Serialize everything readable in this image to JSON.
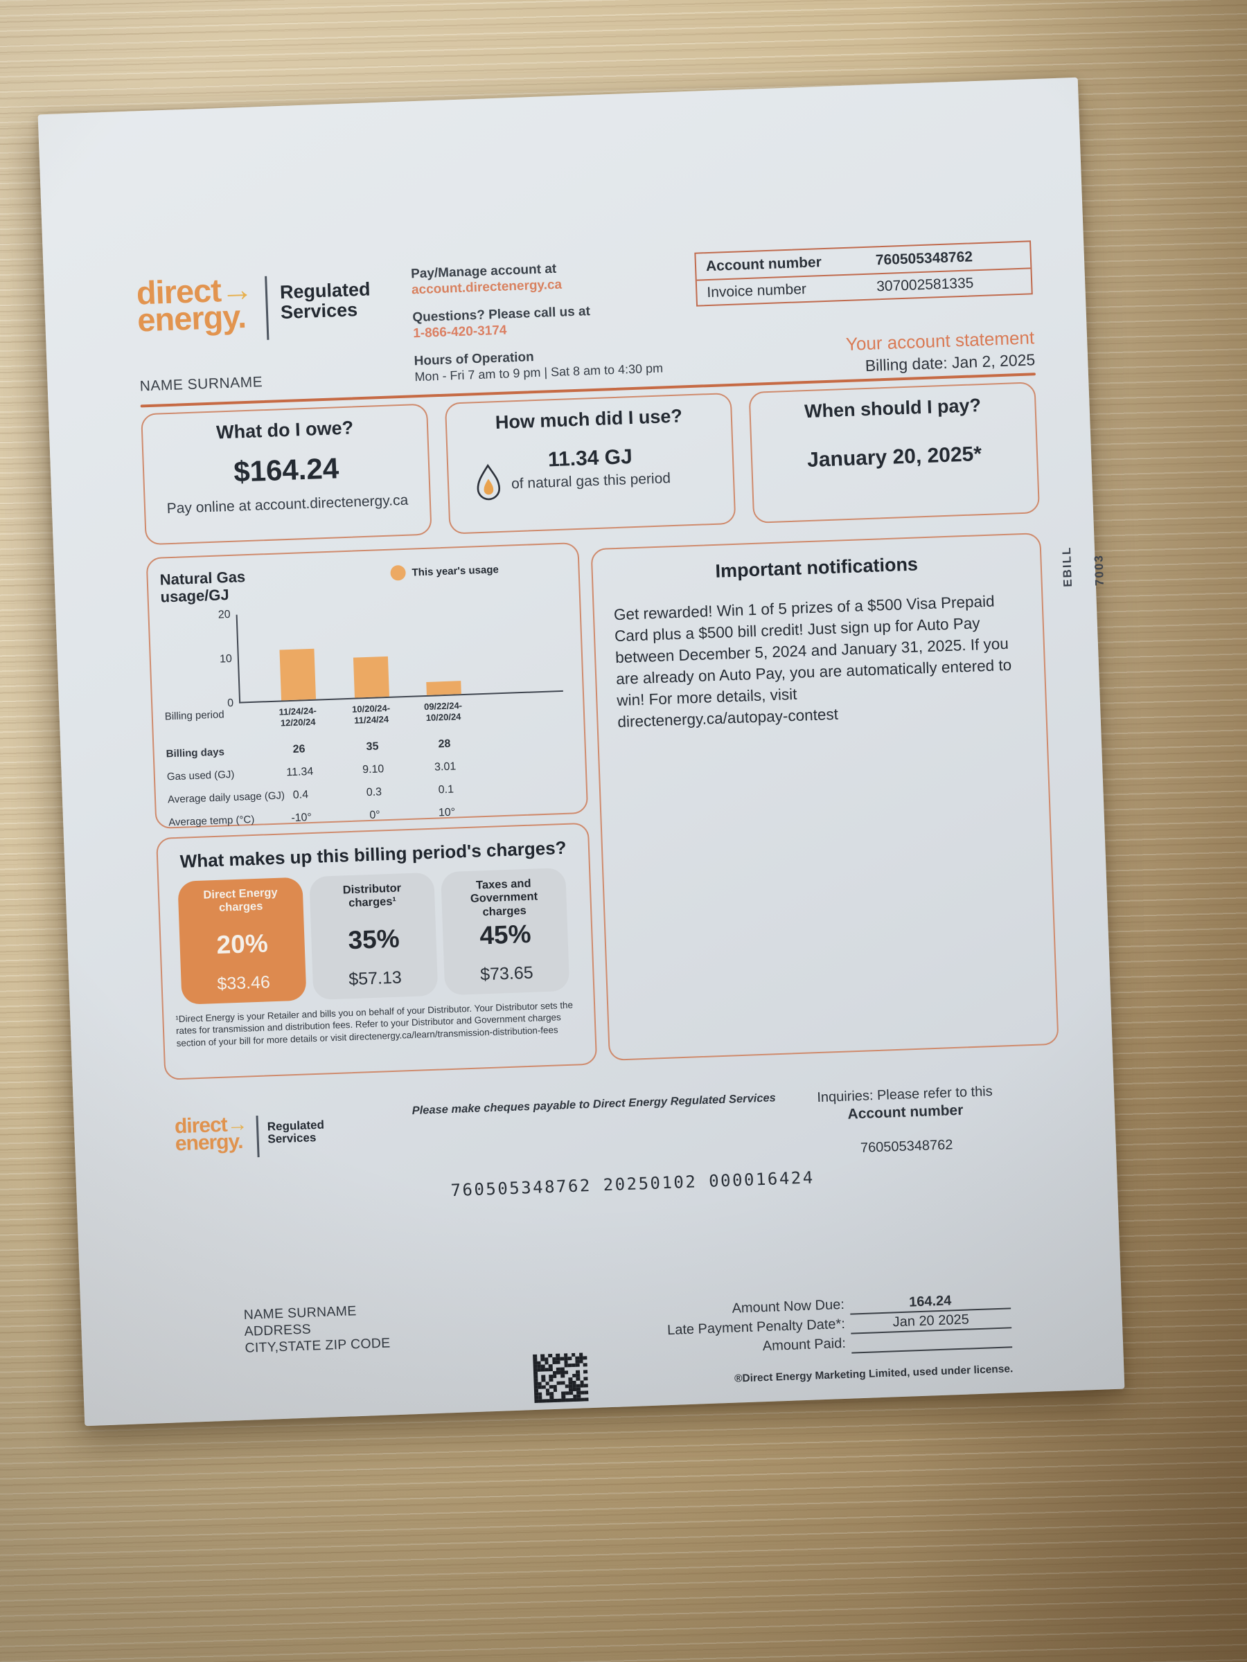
{
  "colors": {
    "accent": "#cf7a52",
    "logo_orange": "#e2944f",
    "arrow_gold": "#e7b04e",
    "rule_orange": "#c66a44",
    "bar_orange": "#eca963",
    "charge_card_orange": "#dd8a4f",
    "charge_card_gray": "#d1d5d9",
    "paper": "#dfe4e8",
    "wood": "#c6ad83",
    "ink": "#2b3139"
  },
  "header": {
    "logo_line1": "direct",
    "logo_arrow": "→",
    "logo_line2": "energy.",
    "tagline": "Regulated\nServices",
    "pay_manage_label": "Pay/Manage account at",
    "pay_manage_link": "account.directenergy.ca",
    "questions_label": "Questions? Please call us at",
    "phone": "1-866-420-3174",
    "hours_label": "Hours of Operation",
    "hours_value": "Mon - Fri 7 am to 9 pm | Sat 8 am to 4:30 pm",
    "account_number_label": "Account number",
    "account_number": "760505348762",
    "invoice_number_label": "Invoice number",
    "invoice_number": "307002581335",
    "customer_name": "NAME SURNAME",
    "statement_title": "Your account statement",
    "billing_date": "Billing date: Jan 2, 2025"
  },
  "side_label": {
    "code": "7003",
    "ebill": "EBILL"
  },
  "summary_cards": {
    "owe": {
      "title": "What do I owe?",
      "amount": "$164.24",
      "note": "Pay online at account.directenergy.ca"
    },
    "usage": {
      "title": "How much did I use?",
      "value": "11.34 GJ",
      "note": "of natural gas this period"
    },
    "pay_by": {
      "title": "When should I pay?",
      "date": "January 20, 2025*"
    }
  },
  "chart_data": {
    "type": "bar",
    "title": "Natural Gas\nusage/GJ",
    "legend": "This year's usage",
    "categories": [
      "11/24/24-12/20/24",
      "10/20/24-11/24/24",
      "09/22/24-10/20/24"
    ],
    "values": [
      11.34,
      9.1,
      3.01
    ],
    "ylim": [
      0,
      20
    ],
    "yticks": [
      20,
      10,
      0
    ],
    "xlabel": "Billing period",
    "ylabel": "GJ",
    "legend_position": "top-right",
    "grid": false
  },
  "usage_table": {
    "rows": [
      {
        "label": "Billing period",
        "values": [
          "11/24/24-\n12/20/24",
          "10/20/24-\n11/24/24",
          "09/22/24-\n10/20/24"
        ],
        "bold": false,
        "small": true
      },
      {
        "label": "Billing days",
        "values": [
          "26",
          "35",
          "28"
        ],
        "bold": true,
        "small": false
      },
      {
        "label": "Gas used (GJ)",
        "values": [
          "11.34",
          "9.10",
          "3.01"
        ],
        "bold": false,
        "small": false
      },
      {
        "label": "Average daily usage (GJ)",
        "values": [
          "0.4",
          "0.3",
          "0.1"
        ],
        "bold": false,
        "small": false
      },
      {
        "label": "Average temp (°C)",
        "values": [
          "-10°",
          "0°",
          "10°"
        ],
        "bold": false,
        "small": false
      }
    ]
  },
  "notifications": {
    "title": "Important notifications",
    "body": "Get rewarded! Win 1 of 5 prizes of a $500 Visa Prepaid Card plus a $500 bill credit! Just sign up for Auto Pay between December 5, 2024 and January 31, 2025. If you are already on Auto Pay, you are automatically entered to win! For more details, visit\ndirectenergy.ca/autopay-contest"
  },
  "charges": {
    "title": "What makes up this billing period's charges?",
    "items": [
      {
        "name": "Direct Energy\ncharges",
        "percent": "20%",
        "amount": "$33.46",
        "highlight": true
      },
      {
        "name": "Distributor\ncharges¹",
        "percent": "35%",
        "amount": "$57.13",
        "highlight": false
      },
      {
        "name": "Taxes and\nGovernment\ncharges",
        "percent": "45%",
        "amount": "$73.65",
        "highlight": false
      }
    ],
    "footnote": "¹Direct Energy is your Retailer and bills you on behalf of your Distributor. Your Distributor sets the rates for transmission and distribution fees. Refer to your Distributor and Government charges section of your bill for more details or visit directenergy.ca/learn/transmission-distribution-fees"
  },
  "stub": {
    "cheque_note": "Please make cheques payable to Direct Energy Regulated Services",
    "inquiries_line1": "Inquiries: Please refer to this",
    "inquiries_line2": "Account number",
    "inquiries_account": "760505348762",
    "ocr_line": "760505348762 20250102 000016424",
    "address_lines": [
      "NAME SURNAME",
      "ADDRESS",
      "CITY,STATE ZIP CODE"
    ],
    "amount_due_label": "Amount Now Due:",
    "amount_due_value": "164.24",
    "penalty_label": "Late Payment Penalty Date*:",
    "penalty_value": "Jan 20 2025",
    "amount_paid_label": "Amount Paid:",
    "amount_paid_value": "",
    "trademark": "®Direct Energy Marketing Limited, used under license."
  }
}
